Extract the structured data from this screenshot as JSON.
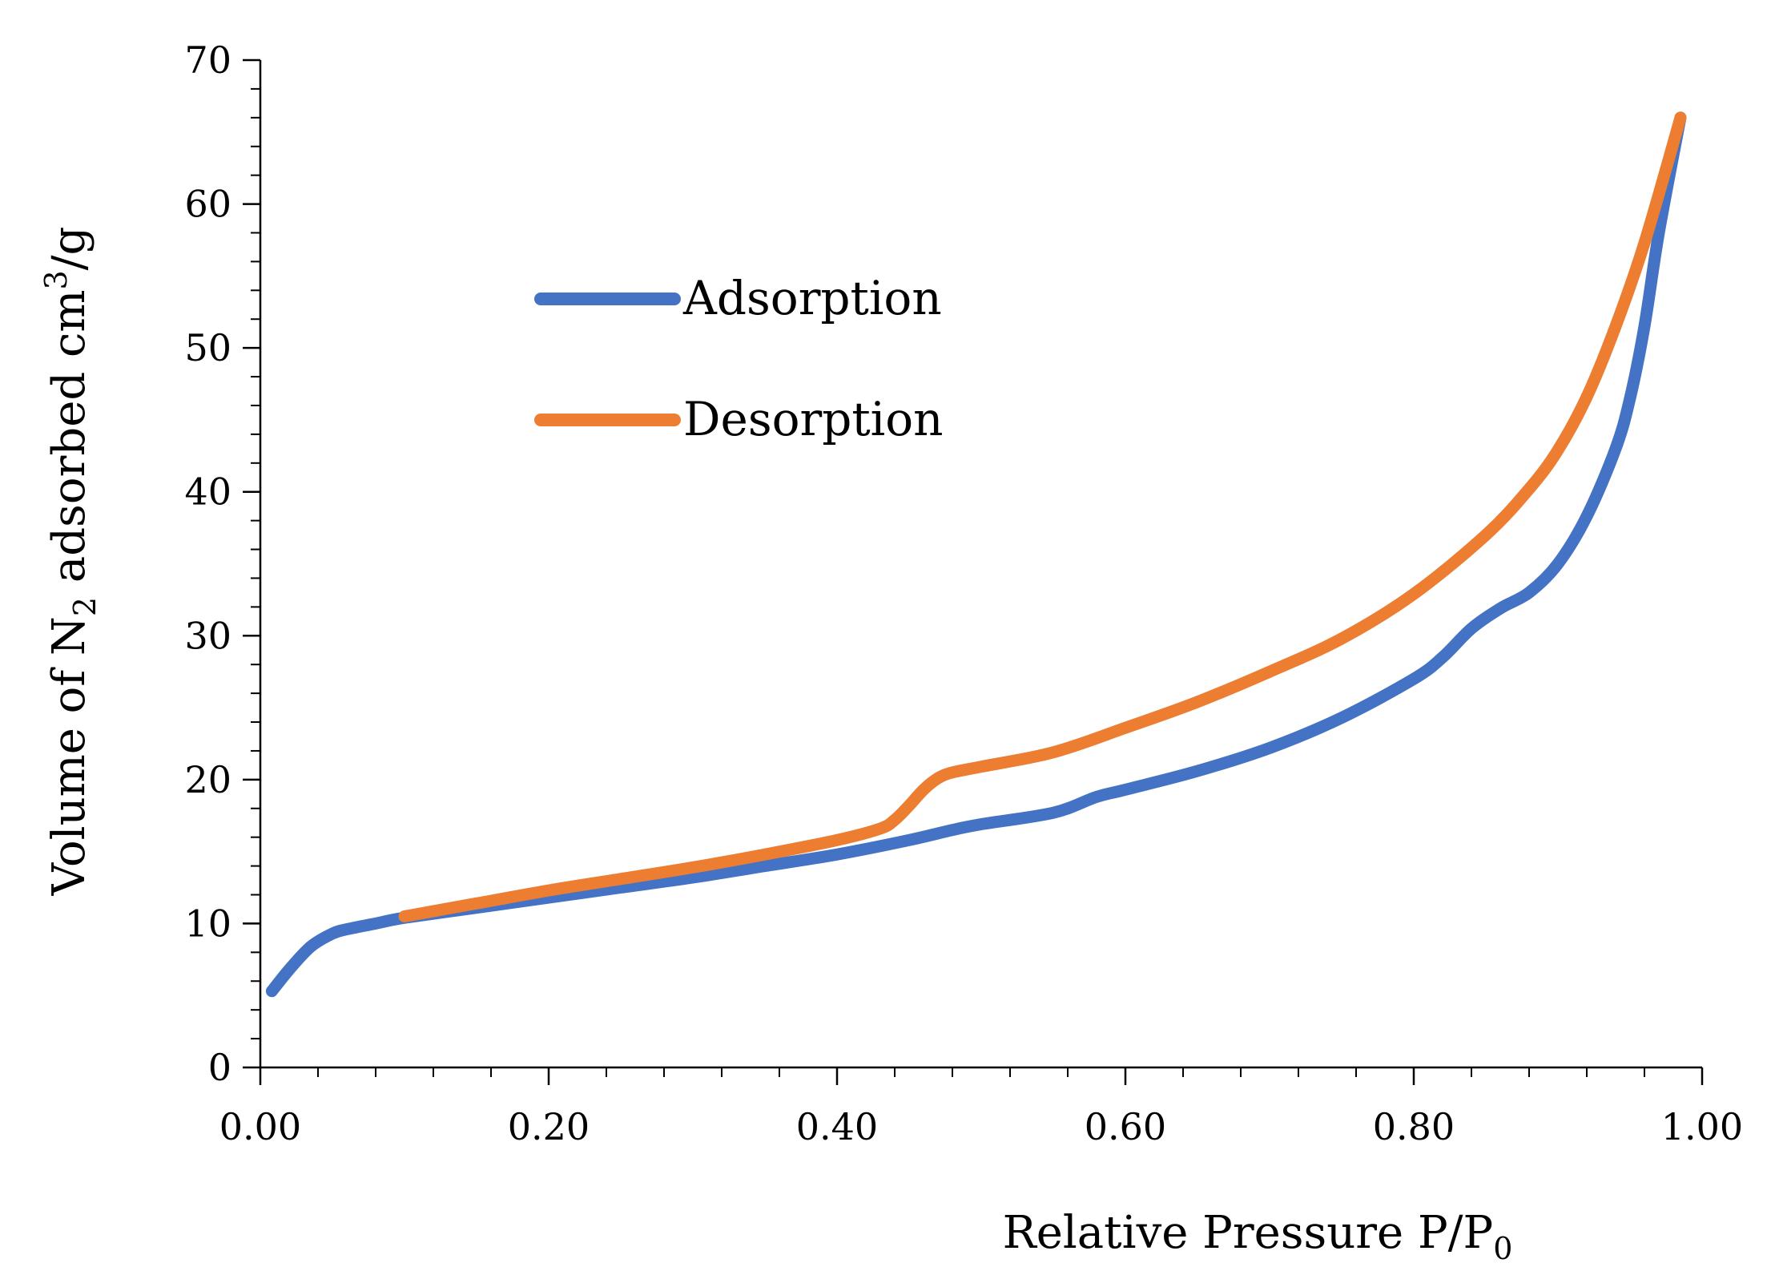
{
  "chart_data": {
    "type": "line",
    "title": "",
    "xlabel": {
      "text": "Relative Pressure P/P",
      "subscript": "0"
    },
    "ylabel": {
      "part1": "Volume of N",
      "sub": "2",
      "part2": " adsorbed cm",
      "sup": "3",
      "part3": "/g"
    },
    "xlim": [
      0,
      1
    ],
    "ylim": [
      0,
      70
    ],
    "x_ticks": [
      0,
      0.2,
      0.4,
      0.6,
      0.8,
      1.0
    ],
    "x_tick_labels": [
      "0.00",
      "0.20",
      "0.40",
      "0.60",
      "0.80",
      "1.00"
    ],
    "y_ticks": [
      0,
      10,
      20,
      30,
      40,
      50,
      60,
      70
    ],
    "y_tick_labels": [
      "0",
      "10",
      "20",
      "30",
      "40",
      "50",
      "60",
      "70"
    ],
    "grid": false,
    "legend_position": "upper-left",
    "series": [
      {
        "name": "Adsorption",
        "color": "#4472C4",
        "x": [
          0.008,
          0.02,
          0.035,
          0.05,
          0.06,
          0.08,
          0.1,
          0.15,
          0.2,
          0.25,
          0.3,
          0.35,
          0.4,
          0.45,
          0.48,
          0.5,
          0.55,
          0.58,
          0.6,
          0.65,
          0.7,
          0.75,
          0.8,
          0.82,
          0.84,
          0.86,
          0.88,
          0.9,
          0.92,
          0.94,
          0.95,
          0.96,
          0.97,
          0.985
        ],
        "y": [
          5.3,
          6.8,
          8.4,
          9.3,
          9.6,
          10.0,
          10.4,
          11.1,
          11.8,
          12.5,
          13.2,
          14.0,
          14.8,
          15.8,
          16.5,
          16.9,
          17.7,
          18.8,
          19.3,
          20.6,
          22.2,
          24.3,
          27.0,
          28.5,
          30.5,
          31.9,
          33.0,
          35.0,
          38.3,
          43.0,
          46.5,
          51.5,
          58.0,
          66.0
        ]
      },
      {
        "name": "Desorption",
        "color": "#ED7D31",
        "x": [
          0.1,
          0.15,
          0.2,
          0.25,
          0.3,
          0.35,
          0.4,
          0.43,
          0.44,
          0.45,
          0.46,
          0.47,
          0.48,
          0.5,
          0.55,
          0.6,
          0.65,
          0.7,
          0.75,
          0.8,
          0.85,
          0.88,
          0.9,
          0.92,
          0.94,
          0.96,
          0.985
        ],
        "y": [
          10.5,
          11.4,
          12.3,
          13.1,
          13.9,
          14.8,
          15.8,
          16.6,
          17.2,
          18.2,
          19.3,
          20.1,
          20.5,
          20.9,
          21.9,
          23.6,
          25.4,
          27.5,
          29.8,
          32.9,
          37.0,
          40.2,
          42.9,
          46.6,
          51.5,
          57.3,
          66.0
        ]
      }
    ]
  }
}
